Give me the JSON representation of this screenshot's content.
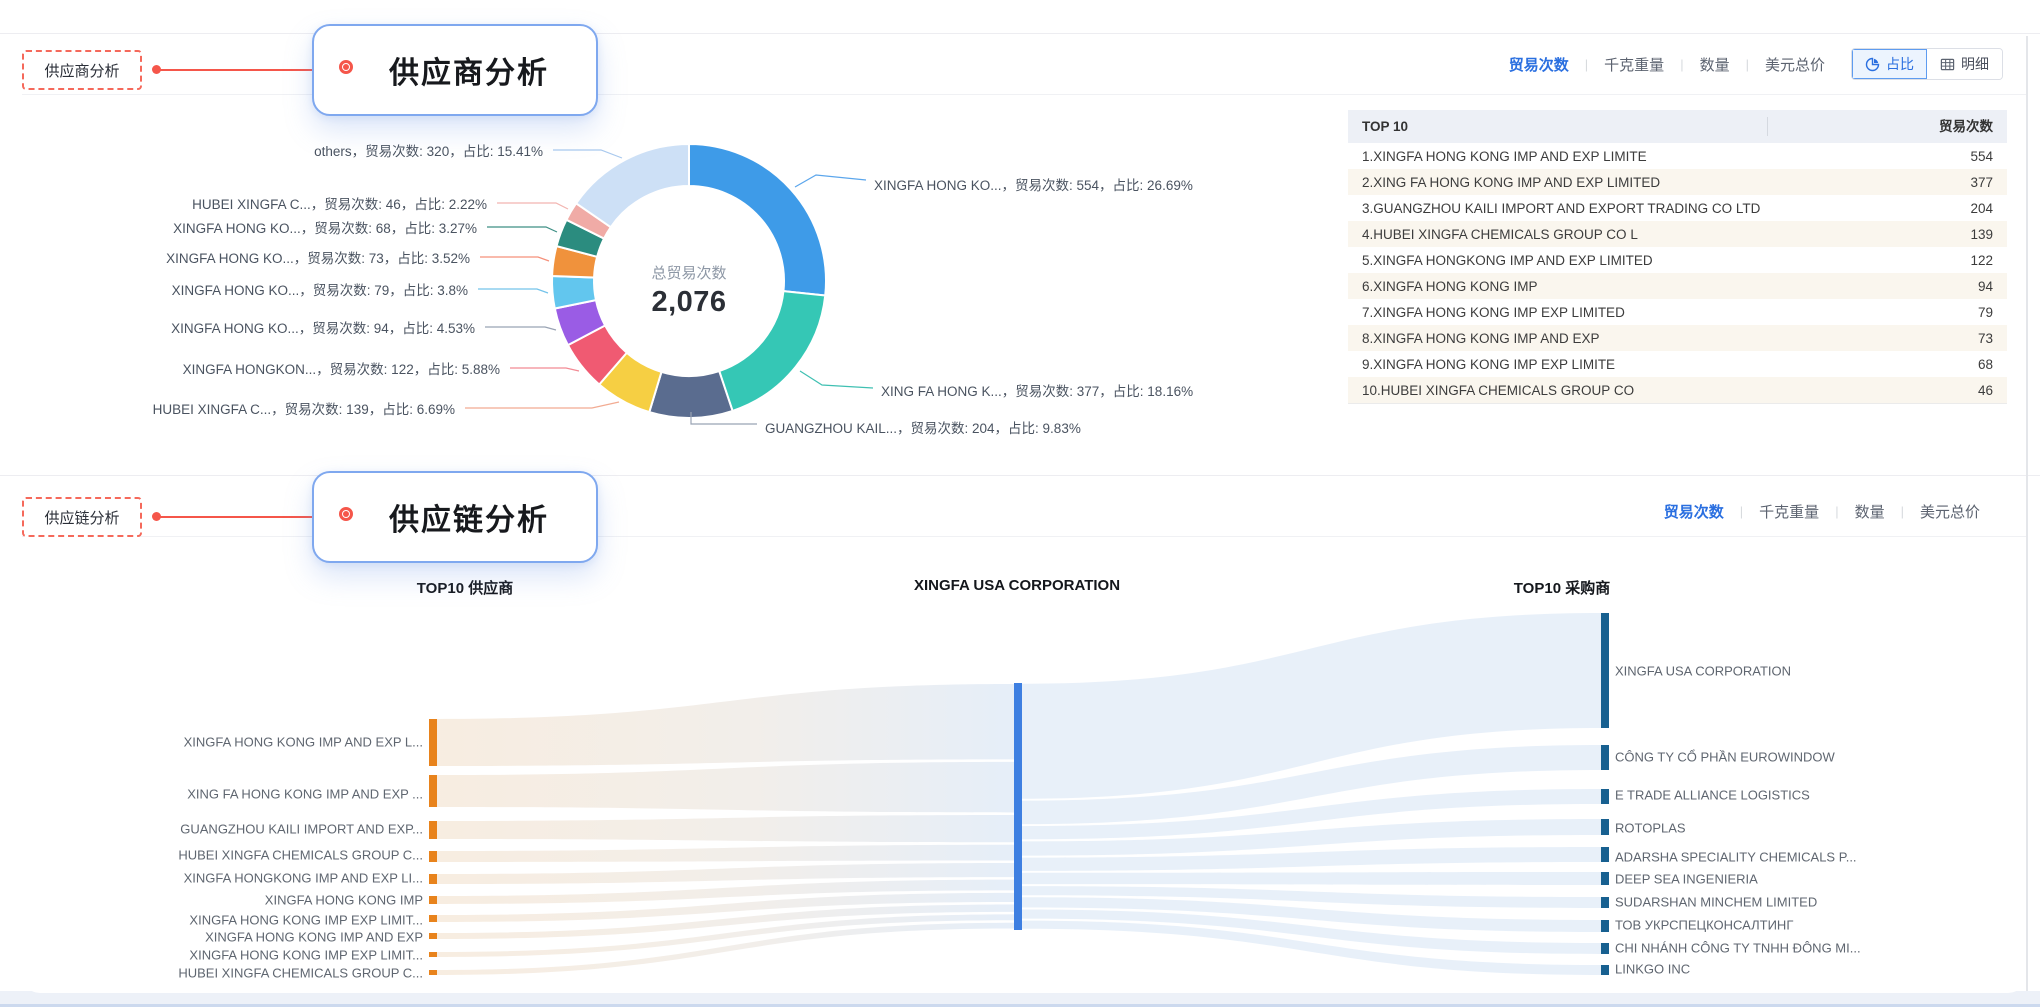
{
  "section1": {
    "anchor_label": "供应商分析",
    "callout_title": "供应商分析",
    "tabs": [
      "贸易次数",
      "千克重量",
      "数量",
      "美元总价"
    ],
    "active_tab": "贸易次数",
    "view_toggle": {
      "pie_label": "占比",
      "table_label": "明细",
      "active": "占比"
    },
    "table": {
      "columns": [
        "TOP 10",
        "贸易次数"
      ],
      "rows": [
        {
          "rank_name": "1.XINGFA HONG KONG IMP AND EXP LIMITE",
          "value": "554"
        },
        {
          "rank_name": "2.XING FA HONG KONG IMP AND EXP LIMITED",
          "value": "377"
        },
        {
          "rank_name": "3.GUANGZHOU KAILI IMPORT AND EXPORT TRADING CO LTD",
          "value": "204"
        },
        {
          "rank_name": "4.HUBEI XINGFA CHEMICALS GROUP CO L",
          "value": "139"
        },
        {
          "rank_name": "5.XINGFA HONGKONG IMP AND EXP LIMITED",
          "value": "122"
        },
        {
          "rank_name": "6.XINGFA HONG KONG IMP",
          "value": "94"
        },
        {
          "rank_name": "7.XINGFA HONG KONG IMP EXP LIMITED",
          "value": "79"
        },
        {
          "rank_name": "8.XINGFA HONG KONG IMP AND EXP",
          "value": "73"
        },
        {
          "rank_name": "9.XINGFA HONG KONG IMP EXP LIMITE",
          "value": "68"
        },
        {
          "rank_name": "10.HUBEI XINGFA CHEMICALS GROUP CO",
          "value": "46"
        }
      ]
    }
  },
  "section2": {
    "anchor_label": "供应链分析",
    "callout_title": "供应链分析",
    "tabs": [
      "贸易次数",
      "千克重量",
      "数量",
      "美元总价"
    ],
    "active_tab": "贸易次数"
  },
  "chart_data": [
    {
      "type": "pie",
      "center_title": "总贸易次数",
      "center_total": "2,076",
      "metric_label": "贸易次数",
      "pct_label": "占比",
      "legend_position": "around-labels",
      "slices": [
        {
          "name": "XINGFA HONG KO...",
          "value": 554,
          "pct": 26.69,
          "color": "#3e9be8"
        },
        {
          "name": "XING FA HONG K...",
          "value": 377,
          "pct": 18.16,
          "color": "#35c7b5"
        },
        {
          "name": "GUANGZHOU KAIL...",
          "value": 204,
          "pct": 9.83,
          "color": "#5a6c8f"
        },
        {
          "name": "HUBEI XINGFA C...",
          "value": 139,
          "pct": 6.69,
          "color": "#f6cf43"
        },
        {
          "name": "XINGFA HONGKON...",
          "value": 122,
          "pct": 5.88,
          "color": "#f05a72"
        },
        {
          "name": "XINGFA HONG KO...",
          "value": 94,
          "pct": 4.53,
          "color": "#9a5ce5"
        },
        {
          "name": "XINGFA HONG KO...",
          "value": 79,
          "pct": 3.8,
          "color": "#62c6ee"
        },
        {
          "name": "XINGFA HONG KO...",
          "value": 73,
          "pct": 3.52,
          "color": "#f0923c"
        },
        {
          "name": "XINGFA HONG KO...",
          "value": 68,
          "pct": 3.27,
          "color": "#2b8c7f"
        },
        {
          "name": "HUBEI XINGFA C...",
          "value": 46,
          "pct": 2.22,
          "color": "#f0aba6"
        },
        {
          "name": "others",
          "value": 320,
          "pct": 15.41,
          "color": "#cde0f6"
        }
      ]
    },
    {
      "type": "sankey",
      "column_headers": [
        "TOP10 供应商",
        "XINGFA USA CORPORATION",
        "TOP10 采购商"
      ],
      "left_nodes": [
        "XINGFA HONG KONG IMP AND EXP L...",
        "XING FA HONG KONG IMP AND EXP ...",
        "GUANGZHOU KAILI IMPORT AND EXP...",
        "HUBEI XINGFA CHEMICALS GROUP C...",
        "XINGFA HONGKONG IMP AND EXP LI...",
        "XINGFA HONG KONG IMP",
        "XINGFA HONG KONG IMP EXP LIMIT...",
        "XINGFA HONG KONG IMP AND EXP",
        "XINGFA HONG KONG IMP EXP LIMIT...",
        "HUBEI XINGFA CHEMICALS GROUP C..."
      ],
      "center_node": "XINGFA USA CORPORATION",
      "right_nodes": [
        "XINGFA USA CORPORATION",
        "CÔNG TY CỔ PHẦN EUROWINDOW",
        "E TRADE ALLIANCE LOGISTICS",
        "ROTOPLAS",
        "ADARSHA SPECIALITY CHEMICALS P...",
        "DEEP SEA INGENIERIA",
        "SUDARSHAN MINCHEM LIMITED",
        "ТОВ УКРСПЕЦКОНСАЛТИНГ",
        "CHI NHÁNH CÔNG TY TNHH ĐÔNG MI...",
        "LINKGO INC"
      ],
      "node_colors": {
        "left": "#e8831c",
        "center": "#3e7fe1",
        "right": "#176090"
      }
    }
  ]
}
